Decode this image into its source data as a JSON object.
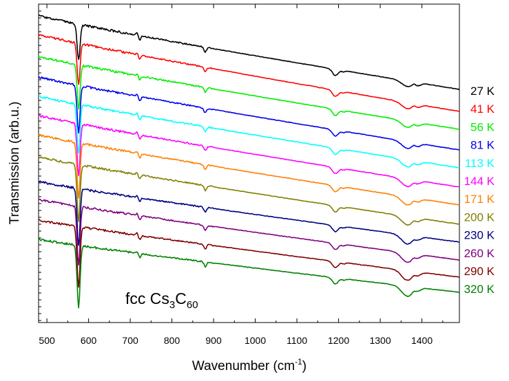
{
  "chart_data": {
    "type": "line",
    "ylabel": "Transmission (arb.u.)",
    "xlabel_main": "Wavenumber (cm",
    "xlabel_sup": "-1",
    "xlabel_close": ")",
    "annotation": {
      "prefix": "fcc Cs",
      "sub1": "3",
      "mid": "C",
      "sub2": "60"
    },
    "xlim": [
      480,
      1490
    ],
    "xticks": [
      500,
      600,
      700,
      800,
      900,
      1000,
      1100,
      1200,
      1300,
      1400
    ],
    "y_ticks_labeled": false,
    "series": [
      {
        "name": "27 K",
        "color": "#000000",
        "start": 23.0,
        "end": 130.0,
        "dip_depth": 52
      },
      {
        "name": "41 K",
        "color": "#ff0000",
        "start": 50.0,
        "end": 162.0,
        "dip_depth": 60
      },
      {
        "name": "56 K",
        "color": "#00ee00",
        "start": 82.0,
        "end": 188.0,
        "dip_depth": 64
      },
      {
        "name": "81 K",
        "color": "#0000ee",
        "start": 112.0,
        "end": 218.0,
        "dip_depth": 68
      },
      {
        "name": "113 K",
        "color": "#00ffff",
        "start": 140.0,
        "end": 244.0,
        "dip_depth": 72
      },
      {
        "name": "144 K",
        "color": "#ff00ff",
        "start": 168.0,
        "end": 272.0,
        "dip_depth": 76
      },
      {
        "name": "171 K",
        "color": "#ff8000",
        "start": 196.0,
        "end": 298.0,
        "dip_depth": 80
      },
      {
        "name": "200 K",
        "color": "#808000",
        "start": 228.0,
        "end": 326.0,
        "dip_depth": 82
      },
      {
        "name": "230 K",
        "color": "#000080",
        "start": 264.0,
        "end": 352.0,
        "dip_depth": 84
      },
      {
        "name": "260 K",
        "color": "#800080",
        "start": 290.0,
        "end": 378.0,
        "dip_depth": 86
      },
      {
        "name": "290 K",
        "color": "#800000",
        "start": 320.0,
        "end": 403.0,
        "dip_depth": 88
      },
      {
        "name": "320 K",
        "color": "#008000",
        "start": 348.0,
        "end": 425.0,
        "dip_depth": 90
      }
    ]
  }
}
